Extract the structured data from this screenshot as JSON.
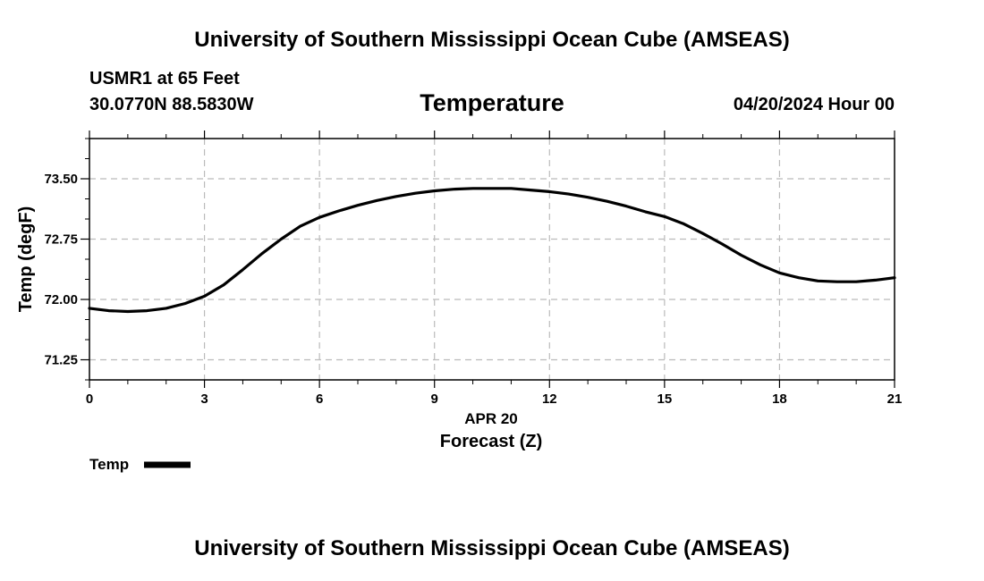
{
  "header": {
    "title": "University of Southern Mississippi Ocean Cube (AMSEAS)",
    "station": "USMR1 at 65 Feet",
    "coords": "30.0770N  88.5830W",
    "variable": "Temperature",
    "datetime": "04/20/2024 Hour 00"
  },
  "footer": {
    "title": "University of Southern Mississippi Ocean Cube (AMSEAS)"
  },
  "legend": {
    "label": "Temp"
  },
  "chart_data": {
    "type": "line",
    "title": "Temperature",
    "xlabel": "Forecast (Z)",
    "xdate": "APR 20",
    "ylabel": "Temp (degF)",
    "xlim": [
      0,
      21
    ],
    "ylim": [
      71.0,
      74.0
    ],
    "xticks": [
      0,
      3,
      6,
      9,
      12,
      15,
      18,
      21
    ],
    "xtick_labels": [
      "0",
      "3",
      "6",
      "9",
      "12",
      "15",
      "18",
      "21"
    ],
    "yticks": [
      71.25,
      72.0,
      72.75,
      73.5
    ],
    "ytick_labels": [
      "71.25",
      "72.00",
      "72.75",
      "73.50"
    ],
    "grid": true,
    "series": [
      {
        "name": "Temp",
        "color": "#000000",
        "x": [
          0,
          0.5,
          1,
          1.5,
          2,
          2.5,
          3,
          3.5,
          4,
          4.5,
          5,
          5.5,
          6,
          6.5,
          7,
          7.5,
          8,
          8.5,
          9,
          9.5,
          10,
          10.5,
          11,
          11.5,
          12,
          12.5,
          13,
          13.5,
          14,
          14.5,
          15,
          15.5,
          16,
          16.5,
          17,
          17.5,
          18,
          18.5,
          19,
          19.5,
          20,
          20.5,
          21
        ],
        "values": [
          71.89,
          71.86,
          71.85,
          71.86,
          71.89,
          71.95,
          72.04,
          72.18,
          72.37,
          72.57,
          72.75,
          72.91,
          73.02,
          73.1,
          73.17,
          73.23,
          73.28,
          73.32,
          73.35,
          73.37,
          73.38,
          73.38,
          73.38,
          73.36,
          73.34,
          73.31,
          73.27,
          73.22,
          73.16,
          73.09,
          73.03,
          72.94,
          72.82,
          72.69,
          72.55,
          72.43,
          72.33,
          72.27,
          72.23,
          72.22,
          72.22,
          72.24,
          72.27
        ]
      }
    ]
  }
}
